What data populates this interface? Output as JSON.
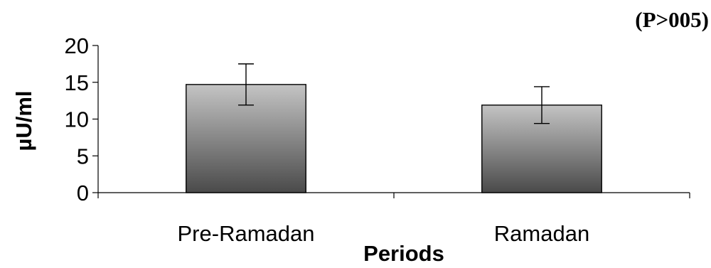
{
  "chart_data": {
    "type": "bar",
    "title": "",
    "annotation": "(P>005)",
    "xlabel": "Periods",
    "ylabel": "µU/ml",
    "categories": [
      "Pre-Ramadan",
      "Ramadan"
    ],
    "series": [
      {
        "values": [
          14.7,
          11.9
        ],
        "error": [
          2.8,
          2.5
        ]
      }
    ],
    "ylim": [
      0,
      20
    ],
    "yticks": [
      "0",
      "5",
      "10",
      "15",
      "20"
    ],
    "grid": false,
    "legend": "none",
    "bar_gradient": [
      "#c4c4c4",
      "#4a4a4a"
    ]
  }
}
